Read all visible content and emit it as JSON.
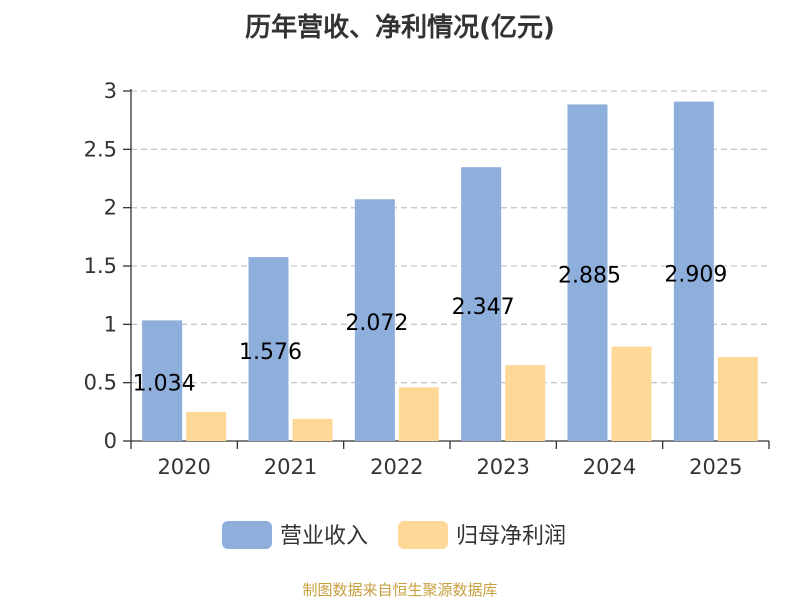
{
  "chart_data": {
    "type": "bar",
    "title": "历年营收、净利情况(亿元)",
    "categories": [
      "2020",
      "2021",
      "2022",
      "2023",
      "2024",
      "2025"
    ],
    "series": [
      {
        "name": "营业收入",
        "color": "#8eaedb",
        "values": [
          1.034,
          1.576,
          2.072,
          2.347,
          2.885,
          2.909
        ],
        "labels": [
          "1.034",
          "1.576",
          "2.072",
          "2.347",
          "2.885",
          "2.909"
        ]
      },
      {
        "name": "归母净利润",
        "color": "#fdd897",
        "values": [
          0.25,
          0.19,
          0.46,
          0.65,
          0.81,
          0.72
        ]
      }
    ],
    "ylim": [
      0,
      3
    ],
    "yticks": [
      "0",
      "0.5",
      "1",
      "1.5",
      "2",
      "2.5",
      "3"
    ],
    "grid": true,
    "legend_position": "bottom"
  },
  "footer": {
    "source": "制图数据来自恒生聚源数据库",
    "source_color": "#c8a040"
  }
}
